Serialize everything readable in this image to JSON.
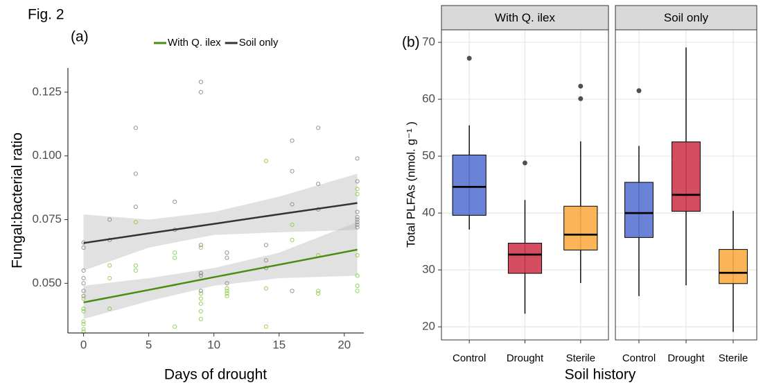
{
  "figure_label": "Fig. 2",
  "chart_data": [
    {
      "type": "scatter",
      "panel_label": "(a)",
      "x_label": "Days of drought",
      "y_label": "Fungal:bacterial ratio",
      "xlim": [
        -1.2,
        21.5
      ],
      "xticks": [
        0,
        5,
        10,
        15,
        20
      ],
      "ylim": [
        0.0305,
        0.1345
      ],
      "yticks": [
        {
          "value": 0.05,
          "label": "0.050"
        },
        0.075,
        {
          "value": 0.1,
          "label": "0.100"
        },
        0.125
      ],
      "grid": false,
      "legend": "top",
      "series": [
        {
          "name": "With Q. ilex",
          "color": "#4a8c0f",
          "point_color": "#8ccc4c",
          "x": [
            0,
            0,
            0,
            0,
            0,
            0,
            0,
            2,
            2,
            2,
            4,
            4,
            4,
            7,
            7,
            7,
            9,
            9,
            9,
            9,
            9,
            9,
            9,
            11,
            11,
            11,
            11,
            14,
            14,
            14,
            16,
            16,
            18,
            18,
            18,
            21,
            21,
            21,
            21,
            21,
            21
          ],
          "values": [
            0.044,
            0.04,
            0.039,
            0.035,
            0.034,
            0.032,
            0.031,
            0.057,
            0.052,
            0.04,
            0.074,
            0.057,
            0.055,
            0.062,
            0.06,
            0.033,
            0.064,
            0.054,
            0.046,
            0.044,
            0.042,
            0.039,
            0.036,
            0.048,
            0.047,
            0.046,
            0.045,
            0.098,
            0.048,
            0.033,
            0.073,
            0.067,
            0.061,
            0.047,
            0.046,
            0.087,
            0.085,
            0.061,
            0.053,
            0.049,
            0.047
          ],
          "fit": {
            "x": [
              0,
              5,
              10,
              15,
              21
            ],
            "values": [
              0.0425,
              0.0474,
              0.0524,
              0.0573,
              0.0632
            ],
            "lower": [
              0.036,
              0.043,
              0.049,
              0.052,
              0.053
            ],
            "upper": [
              0.049,
              0.052,
              0.056,
              0.062,
              0.074
            ]
          }
        },
        {
          "name": "Soil only",
          "color": "#333333",
          "point_color": "#8a8a8a",
          "x": [
            0,
            0,
            0,
            0,
            0,
            0,
            0,
            2,
            2,
            4,
            4,
            4,
            7,
            7,
            9,
            9,
            9,
            9,
            9,
            9,
            11,
            11,
            11,
            14,
            14,
            14,
            16,
            16,
            16,
            16,
            18,
            18,
            18,
            21,
            21,
            21,
            21,
            21,
            21,
            21,
            21
          ],
          "values": [
            0.066,
            0.064,
            0.055,
            0.052,
            0.05,
            0.047,
            0.045,
            0.075,
            0.067,
            0.111,
            0.093,
            0.08,
            0.082,
            0.071,
            0.129,
            0.125,
            0.065,
            0.054,
            0.053,
            0.047,
            0.062,
            0.06,
            0.05,
            0.065,
            0.059,
            0.056,
            0.106,
            0.094,
            0.081,
            0.047,
            0.111,
            0.089,
            0.079,
            0.099,
            0.09,
            0.078,
            0.076,
            0.075,
            0.074,
            0.073,
            0.072
          ],
          "fit": {
            "x": [
              0,
              5,
              10,
              15,
              21
            ],
            "values": [
              0.0658,
              0.0696,
              0.0733,
              0.0771,
              0.0815
            ],
            "lower": [
              0.055,
              0.064,
              0.069,
              0.07,
              0.071
            ],
            "upper": [
              0.077,
              0.075,
              0.078,
              0.084,
              0.093
            ]
          }
        }
      ]
    },
    {
      "type": "box",
      "panel_label": "(b)",
      "x_label": "Soil history",
      "y_label": "Total PLFAs (nmol. g⁻¹ )",
      "categories": [
        "Control",
        "Drought",
        "Sterile"
      ],
      "colors": [
        "#5b76d3",
        "#d03a50",
        "#fbac45"
      ],
      "ylim": [
        17.7,
        72.2
      ],
      "yticks": [
        20,
        30,
        40,
        50,
        60,
        70
      ],
      "grid": true,
      "facets": [
        {
          "name": "With Q. ilex",
          "boxes": [
            {
              "low": 37.1,
              "q1": 39.6,
              "median": 44.6,
              "q3": 50.2,
              "high": 55.4,
              "outliers": [
                67.2
              ]
            },
            {
              "low": 22.3,
              "q1": 29.4,
              "median": 32.7,
              "q3": 34.7,
              "high": 42.3,
              "outliers": [
                48.8
              ]
            },
            {
              "low": 27.7,
              "q1": 33.5,
              "median": 36.2,
              "q3": 41.2,
              "high": 52.6,
              "outliers": [
                60.1,
                62.3
              ]
            }
          ]
        },
        {
          "name": "Soil only",
          "boxes": [
            {
              "low": 25.4,
              "q1": 35.7,
              "median": 40.0,
              "q3": 45.4,
              "high": 51.8,
              "outliers": [
                61.5
              ]
            },
            {
              "low": 27.3,
              "q1": 40.3,
              "median": 43.2,
              "q3": 52.5,
              "high": 69.1,
              "outliers": []
            },
            {
              "low": 19.1,
              "q1": 27.6,
              "median": 29.5,
              "q3": 33.6,
              "high": 40.4,
              "outliers": []
            }
          ]
        }
      ]
    }
  ]
}
